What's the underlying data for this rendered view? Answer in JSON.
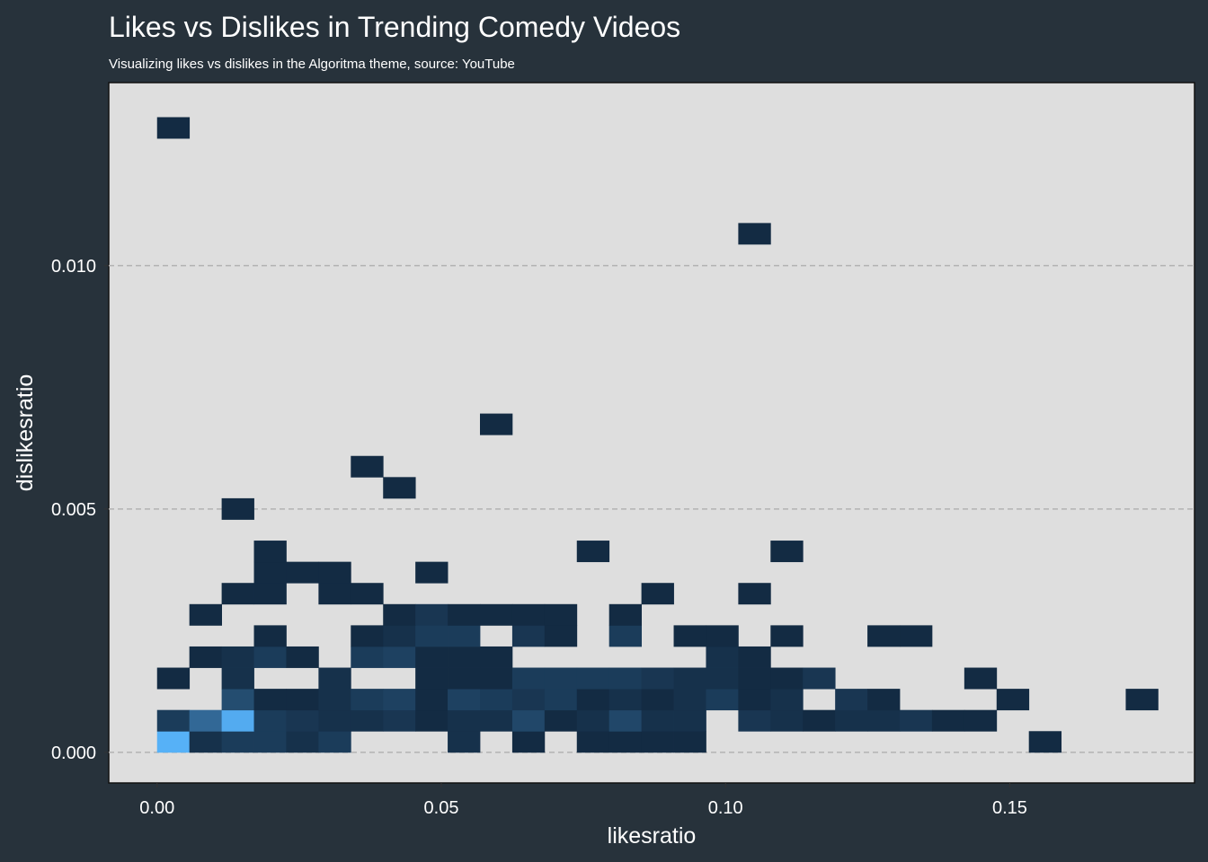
{
  "chart_data": {
    "type": "heatmap",
    "title": "Likes vs Dislikes in Trending Comedy Videos",
    "subtitle": "Visualizing likes vs dislikes in the Algoritma theme, source: YouTube",
    "xlabel": "likesratio",
    "ylabel": "dislikesratio",
    "xlim": [
      -0.0085,
      0.1825
    ],
    "ylim": [
      -0.00063,
      0.01376
    ],
    "x_ticks": [
      {
        "value": 0.0,
        "label": "0.00"
      },
      {
        "value": 0.05,
        "label": "0.05"
      },
      {
        "value": 0.1,
        "label": "0.10"
      },
      {
        "value": 0.15,
        "label": "0.15"
      }
    ],
    "y_ticks": [
      {
        "value": 0.0,
        "label": "0.000"
      },
      {
        "value": 0.005,
        "label": "0.005"
      },
      {
        "value": 0.01,
        "label": "0.010"
      }
    ],
    "grid": "horizontal dashed major lines",
    "bin_width_x": 0.00568,
    "bin_height_y": 0.000435,
    "x_bin_origin": 0.0,
    "y_bin_origin": 0.0,
    "count_scale": {
      "low": 1,
      "high": 25,
      "low_color": "#132b43",
      "high_color": "#56b1f7"
    },
    "bins": [
      [
        0,
        0,
        25
      ],
      [
        1,
        0,
        2
      ],
      [
        2,
        0,
        4
      ],
      [
        3,
        0,
        4
      ],
      [
        4,
        0,
        2
      ],
      [
        5,
        0,
        4
      ],
      [
        9,
        0,
        2
      ],
      [
        11,
        0,
        1
      ],
      [
        13,
        0,
        1
      ],
      [
        14,
        0,
        1
      ],
      [
        15,
        0,
        1
      ],
      [
        16,
        0,
        1
      ],
      [
        27,
        0,
        1
      ],
      [
        0,
        1,
        4
      ],
      [
        1,
        1,
        12
      ],
      [
        2,
        1,
        24
      ],
      [
        3,
        1,
        4
      ],
      [
        4,
        1,
        3
      ],
      [
        5,
        1,
        2
      ],
      [
        6,
        1,
        2
      ],
      [
        7,
        1,
        3
      ],
      [
        8,
        1,
        1
      ],
      [
        9,
        1,
        2
      ],
      [
        10,
        1,
        2
      ],
      [
        11,
        1,
        6
      ],
      [
        12,
        1,
        1
      ],
      [
        13,
        1,
        2
      ],
      [
        14,
        1,
        6
      ],
      [
        15,
        1,
        2
      ],
      [
        16,
        1,
        2
      ],
      [
        18,
        1,
        3
      ],
      [
        19,
        1,
        2
      ],
      [
        20,
        1,
        1
      ],
      [
        21,
        1,
        2
      ],
      [
        22,
        1,
        2
      ],
      [
        23,
        1,
        3
      ],
      [
        24,
        1,
        1
      ],
      [
        25,
        1,
        1
      ],
      [
        2,
        2,
        7
      ],
      [
        3,
        2,
        1
      ],
      [
        4,
        2,
        1
      ],
      [
        5,
        2,
        2
      ],
      [
        6,
        2,
        4
      ],
      [
        7,
        2,
        5
      ],
      [
        8,
        2,
        1
      ],
      [
        9,
        2,
        5
      ],
      [
        10,
        2,
        4
      ],
      [
        11,
        2,
        3
      ],
      [
        12,
        2,
        4
      ],
      [
        13,
        2,
        1
      ],
      [
        14,
        2,
        2
      ],
      [
        15,
        2,
        1
      ],
      [
        16,
        2,
        2
      ],
      [
        17,
        2,
        4
      ],
      [
        18,
        2,
        1
      ],
      [
        19,
        2,
        2
      ],
      [
        21,
        2,
        3
      ],
      [
        22,
        2,
        1
      ],
      [
        26,
        2,
        1
      ],
      [
        30,
        2,
        1
      ],
      [
        0,
        3,
        1
      ],
      [
        2,
        3,
        2
      ],
      [
        5,
        3,
        2
      ],
      [
        8,
        3,
        1
      ],
      [
        9,
        3,
        1
      ],
      [
        10,
        3,
        1
      ],
      [
        11,
        3,
        4
      ],
      [
        12,
        3,
        4
      ],
      [
        13,
        3,
        4
      ],
      [
        14,
        3,
        4
      ],
      [
        15,
        3,
        3
      ],
      [
        16,
        3,
        2
      ],
      [
        17,
        3,
        2
      ],
      [
        18,
        3,
        1
      ],
      [
        19,
        3,
        1
      ],
      [
        20,
        3,
        3
      ],
      [
        25,
        3,
        1
      ],
      [
        1,
        4,
        1
      ],
      [
        2,
        4,
        2
      ],
      [
        3,
        4,
        4
      ],
      [
        4,
        4,
        1
      ],
      [
        6,
        4,
        4
      ],
      [
        7,
        4,
        5
      ],
      [
        8,
        4,
        1
      ],
      [
        9,
        4,
        1
      ],
      [
        10,
        4,
        1
      ],
      [
        17,
        4,
        2
      ],
      [
        18,
        4,
        1
      ],
      [
        3,
        5,
        1
      ],
      [
        6,
        5,
        1
      ],
      [
        7,
        5,
        2
      ],
      [
        8,
        5,
        4
      ],
      [
        9,
        5,
        4
      ],
      [
        11,
        5,
        3
      ],
      [
        12,
        5,
        1
      ],
      [
        14,
        5,
        4
      ],
      [
        16,
        5,
        1
      ],
      [
        17,
        5,
        1
      ],
      [
        19,
        5,
        1
      ],
      [
        22,
        5,
        1
      ],
      [
        23,
        5,
        1
      ],
      [
        1,
        6,
        1
      ],
      [
        7,
        6,
        1
      ],
      [
        8,
        6,
        3
      ],
      [
        9,
        6,
        1
      ],
      [
        10,
        6,
        1
      ],
      [
        11,
        6,
        1
      ],
      [
        12,
        6,
        1
      ],
      [
        14,
        6,
        1
      ],
      [
        2,
        7,
        1
      ],
      [
        3,
        7,
        1
      ],
      [
        5,
        7,
        1
      ],
      [
        6,
        7,
        1
      ],
      [
        15,
        7,
        1
      ],
      [
        18,
        7,
        1
      ],
      [
        3,
        8,
        1
      ],
      [
        4,
        8,
        1
      ],
      [
        5,
        8,
        1
      ],
      [
        8,
        8,
        1
      ],
      [
        3,
        9,
        1
      ],
      [
        13,
        9,
        1
      ],
      [
        19,
        9,
        1
      ],
      [
        2,
        11,
        1
      ],
      [
        7,
        12,
        1
      ],
      [
        6,
        13,
        1
      ],
      [
        10,
        15,
        1
      ],
      [
        18,
        24,
        1
      ],
      [
        0,
        29,
        1
      ]
    ]
  }
}
